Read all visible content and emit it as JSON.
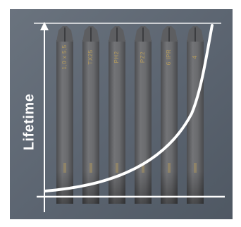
{
  "graphic": {
    "axis_label": "Lifetime",
    "bits": [
      {
        "tip_code": "1,0 x 5,5",
        "size_code": ""
      },
      {
        "tip_code": "TX25",
        "size_code": ""
      },
      {
        "tip_code": "PH2",
        "size_code": ""
      },
      {
        "tip_code": "PZ2",
        "size_code": ""
      },
      {
        "tip_code": "6 IPR",
        "size_code": ""
      },
      {
        "tip_code": "4",
        "size_code": ""
      }
    ],
    "colors": {
      "background": "#5a6470",
      "bit_body": "#6b6c6e",
      "bit_edge": "#4b4c4f",
      "bit_text": "#b59b5c",
      "lines": "#ffffff"
    }
  }
}
